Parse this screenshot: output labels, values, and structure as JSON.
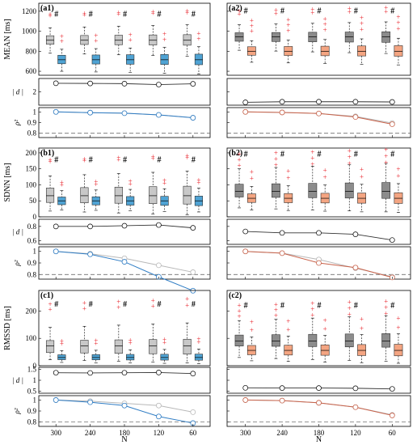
{
  "colors": {
    "grey_box": "#c8c8c8",
    "grey_box_dark": "#8c8c8c",
    "blue_box": "#4fa3d4",
    "orange_box": "#f4a582",
    "outlier": "#e8222a",
    "blue_line": "#2e7cc4",
    "orange_line": "#c8624a",
    "light_line": "#b8b8b8",
    "dark_line": "#333333"
  },
  "chart_data": {
    "type": "box+line",
    "x_ticks": [
      "300",
      "240",
      "180",
      "120",
      "60"
    ],
    "xlabel": "N",
    "rows": [
      {
        "ylabel": "MEAN [ms]",
        "yticks": [
          600,
          800,
          1000,
          1200
        ],
        "ylim": [
          560,
          1280
        ],
        "dylim": [
          1.3,
          2.7
        ],
        "dyticks": [
          2
        ],
        "letters": [
          "(a1)",
          "(a2)"
        ]
      },
      {
        "ylabel": "SDNN [ms]",
        "yticks": [
          0,
          50,
          100,
          150,
          200
        ],
        "ylim": [
          0,
          215
        ],
        "dylim": [
          0.55,
          0.9
        ],
        "dyticks": [
          0.6,
          0.8
        ],
        "letters": [
          "(b1)",
          "(b2)"
        ]
      },
      {
        "ylabel": "RMSSD [ms]",
        "yticks": [
          0,
          100,
          200
        ],
        "ylim": [
          0,
          275
        ],
        "dylim": [
          0.4,
          1.6
        ],
        "dyticks": [
          0.5,
          1,
          1.5
        ],
        "letters": [
          "(c1)",
          "(c2)"
        ]
      }
    ],
    "d_label": "| d |",
    "rho_label": "ρ²",
    "rho_yticks": [
      0.8,
      0.9,
      1
    ],
    "rho_threshold": 0.8,
    "marker": "#",
    "panels": [
      {
        "id": "a1",
        "grey": {
          "q1": 870,
          "med": 910,
          "q3": 955,
          "lo": 780,
          "hi": 1035,
          "out": [
            1155,
            1170
          ]
        },
        "color": {
          "q1": 675,
          "med": 715,
          "q3": 760,
          "lo": 600,
          "hi": 820,
          "out": [
            900,
            950
          ]
        },
        "d": [
          2.45,
          2.44,
          2.43,
          2.38,
          2.42
        ],
        "rho_a": [
          1.0,
          0.993,
          0.988,
          0.972,
          0.945
        ],
        "rho_b": [
          1.0,
          0.993,
          0.988,
          0.972,
          0.945
        ]
      },
      {
        "id": "a2",
        "grey": {
          "q1": 900,
          "med": 945,
          "q3": 985,
          "lo": 810,
          "hi": 1065,
          "out": [
            1170,
            1205
          ]
        },
        "color": {
          "q1": 760,
          "med": 800,
          "q3": 845,
          "lo": 690,
          "hi": 905,
          "out": [
            1000,
            1055,
            1105
          ]
        },
        "d": [
          1.45,
          1.48,
          1.48,
          1.48,
          1.47
        ],
        "rho_a": [
          1.0,
          0.995,
          0.985,
          0.958,
          0.895
        ],
        "rho_b": [
          1.0,
          0.995,
          0.985,
          0.952,
          0.885
        ]
      },
      {
        "id": "b1",
        "grey": {
          "q1": 45,
          "med": 66,
          "q3": 90,
          "lo": 18,
          "hi": 128,
          "out": [
            172,
            178
          ]
        },
        "color": {
          "q1": 38,
          "med": 50,
          "q3": 62,
          "lo": 22,
          "hi": 82,
          "out": [
            100,
            108
          ]
        },
        "d": [
          0.8,
          0.8,
          0.81,
          0.82,
          0.78
        ],
        "rho_a": [
          1.0,
          0.98,
          0.94,
          0.88,
          0.82
        ],
        "rho_b": [
          1.0,
          0.975,
          0.91,
          0.78,
          0.66
        ]
      },
      {
        "id": "b2",
        "grey": {
          "q1": 62,
          "med": 80,
          "q3": 102,
          "lo": 28,
          "hi": 150,
          "out": [
            160,
            178,
            196
          ]
        },
        "color": {
          "q1": 45,
          "med": 58,
          "q3": 72,
          "lo": 22,
          "hi": 95,
          "out": [
            120,
            140
          ]
        },
        "d": [
          0.73,
          0.71,
          0.71,
          0.69,
          0.61
        ],
        "rho_a": [
          1.0,
          0.985,
          0.93,
          0.855,
          0.78
        ],
        "rho_b": [
          1.0,
          0.985,
          0.9,
          0.86,
          0.775
        ]
      },
      {
        "id": "c1",
        "grey": {
          "q1": 48,
          "med": 72,
          "q3": 92,
          "lo": 22,
          "hi": 140,
          "out": [
            205,
            225
          ]
        },
        "color": {
          "q1": 22,
          "med": 30,
          "q3": 40,
          "lo": 12,
          "hi": 55,
          "out": [
            80,
            90
          ]
        },
        "d": [
          1.35,
          1.34,
          1.35,
          1.36,
          1.31
        ],
        "rho_a": [
          1.0,
          0.99,
          0.97,
          0.95,
          0.89
        ],
        "rho_b": [
          1.0,
          0.98,
          0.95,
          0.85,
          0.79
        ]
      },
      {
        "id": "c2",
        "grey": {
          "q1": 72,
          "med": 90,
          "q3": 112,
          "lo": 30,
          "hi": 165,
          "out": [
            180,
            200,
            220
          ]
        },
        "color": {
          "q1": 40,
          "med": 56,
          "q3": 74,
          "lo": 18,
          "hi": 105,
          "out": [
            130,
            160
          ]
        },
        "d": [
          0.65,
          0.64,
          0.64,
          0.63,
          0.6
        ],
        "rho_a": [
          1.0,
          0.995,
          0.975,
          0.935,
          0.865
        ],
        "rho_b": [
          1.0,
          0.995,
          0.975,
          0.935,
          0.86
        ]
      }
    ]
  }
}
